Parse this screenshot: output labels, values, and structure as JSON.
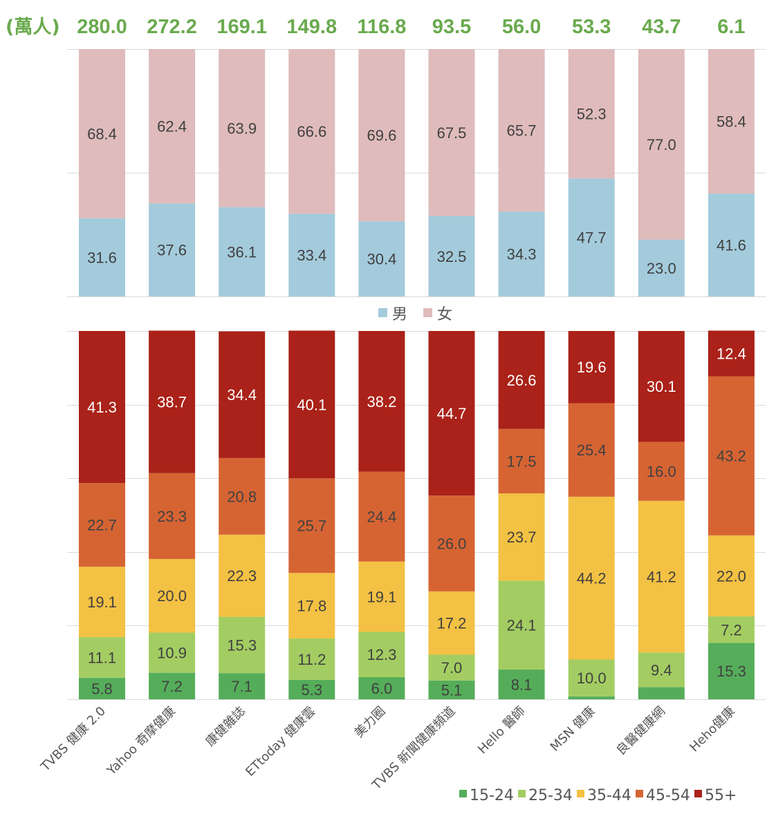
{
  "chart_data": [
    {
      "id": "gender",
      "type": "bar",
      "stacked": true,
      "percent": true,
      "title": "",
      "unit_label": "(萬人)",
      "categories": [
        "TVBS 健康 2.0",
        "Yahoo 奇摩健康",
        "康健雜誌",
        "ETtoday 健康雲",
        "美力圈",
        "TVBS 新聞健康頻道",
        "Hello 醫師",
        "MSN 健康",
        "良醫健康網",
        "Heho健康"
      ],
      "totals": [
        "280.0",
        "272.2",
        "169.1",
        "149.8",
        "116.8",
        "93.5",
        "56.0",
        "53.3",
        "43.7",
        "6.1"
      ],
      "series": [
        {
          "name": "男",
          "color": "#a3cbdc",
          "label_color": "#404040",
          "values": [
            31.6,
            37.6,
            36.1,
            33.4,
            30.4,
            32.5,
            34.3,
            47.7,
            23.0,
            41.6
          ]
        },
        {
          "name": "女",
          "color": "#dfbbbb",
          "label_color": "#404040",
          "values": [
            68.4,
            62.4,
            63.9,
            66.6,
            69.6,
            67.5,
            65.7,
            52.3,
            77.0,
            58.4
          ]
        }
      ],
      "ylim": [
        0,
        100
      ],
      "grid": true,
      "legend": "bottom-center"
    },
    {
      "id": "age",
      "type": "bar",
      "stacked": true,
      "percent": true,
      "title": "",
      "categories": [
        "TVBS 健康 2.0",
        "Yahoo 奇摩健康",
        "康健雜誌",
        "ETtoday 健康雲",
        "美力圈",
        "TVBS 新聞健康頻道",
        "Hello 醫師",
        "MSN 健康",
        "良醫健康網",
        "Heho健康"
      ],
      "series": [
        {
          "name": "15-24",
          "color": "#55ad5a",
          "label_color": "#404040",
          "values": [
            5.8,
            7.2,
            7.1,
            5.3,
            6.0,
            5.1,
            8.1,
            0.8,
            3.3,
            15.3
          ],
          "show_labels": [
            true,
            true,
            true,
            true,
            true,
            true,
            true,
            false,
            false,
            true
          ]
        },
        {
          "name": "25-34",
          "color": "#a3cd62",
          "label_color": "#404040",
          "values": [
            11.1,
            10.9,
            15.3,
            11.2,
            12.3,
            7.0,
            24.1,
            10.0,
            9.4,
            7.2
          ]
        },
        {
          "name": "35-44",
          "color": "#f3c143",
          "label_color": "#404040",
          "values": [
            19.1,
            20.0,
            22.3,
            17.8,
            19.1,
            17.2,
            23.7,
            44.2,
            41.2,
            22.0
          ]
        },
        {
          "name": "45-54",
          "color": "#d66433",
          "label_color": "#404040",
          "values": [
            22.7,
            23.3,
            20.8,
            25.7,
            24.4,
            26.0,
            17.5,
            25.4,
            16.0,
            43.2
          ]
        },
        {
          "name": "55+",
          "color": "#aa2219",
          "label_color": "#ffffff",
          "values": [
            41.3,
            38.7,
            34.4,
            40.1,
            38.2,
            44.7,
            26.6,
            19.6,
            30.1,
            12.4
          ]
        }
      ],
      "ylim": [
        0,
        100
      ],
      "grid": true,
      "legend": "bottom-right"
    }
  ]
}
